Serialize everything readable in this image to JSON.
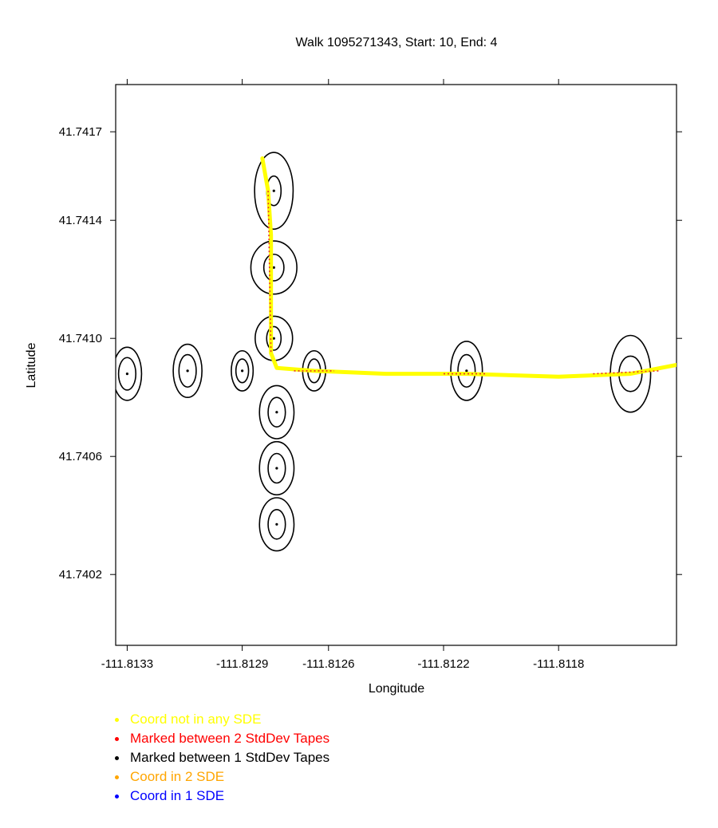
{
  "chart_data": {
    "type": "scatter",
    "title": "Walk 1095271343, Start: 10, End: 4",
    "xlabel": "Longitude",
    "ylabel": "Latitude",
    "xlim": [
      -111.81334,
      -111.81139
    ],
    "ylim": [
      41.73996,
      41.74186
    ],
    "xticks": [
      -111.8133,
      -111.8129,
      -111.8126,
      -111.8122,
      -111.8118
    ],
    "xtick_labels": [
      "-111.8133",
      "-111.8129",
      "-111.8126",
      "-111.8122",
      "-111.8118"
    ],
    "yticks": [
      41.7417,
      41.7414,
      41.741,
      41.7406,
      41.7402
    ],
    "ytick_labels": [
      "41.7417",
      "41.7414",
      "41.7410",
      "41.7406",
      "41.7402"
    ],
    "legend": [
      {
        "label": "Coord not in any SDE",
        "color": "#ffff00"
      },
      {
        "label": "Marked between 2 StdDev Tapes",
        "color": "#ff0000"
      },
      {
        "label": "Marked between 1 StdDev Tapes",
        "color": "#000000"
      },
      {
        "label": "Coord in 2 SDE",
        "color": "#ffa500"
      },
      {
        "label": "Coord in 1 SDE",
        "color": "#0000ff"
      }
    ],
    "ellipses": [
      {
        "x": -111.8133,
        "y": 41.74088,
        "rx1": 3e-05,
        "ry1": 5.5e-05,
        "rx2": 5e-05,
        "ry2": 9e-05
      },
      {
        "x": -111.81309,
        "y": 41.74089,
        "rx1": 3e-05,
        "ry1": 5.5e-05,
        "rx2": 5e-05,
        "ry2": 9e-05
      },
      {
        "x": -111.8129,
        "y": 41.74089,
        "rx1": 2.2e-05,
        "ry1": 4e-05,
        "rx2": 3.8e-05,
        "ry2": 6.8e-05
      },
      {
        "x": -111.81279,
        "y": 41.7415,
        "rx1": 2.5e-05,
        "ry1": 5e-05,
        "rx2": 6.7e-05,
        "ry2": 0.00013
      },
      {
        "x": -111.81279,
        "y": 41.74124,
        "rx1": 3.5e-05,
        "ry1": 4.5e-05,
        "rx2": 8e-05,
        "ry2": 9e-05
      },
      {
        "x": -111.81279,
        "y": 41.741,
        "rx1": 2.5e-05,
        "ry1": 4e-05,
        "rx2": 6.5e-05,
        "ry2": 7.5e-05
      },
      {
        "x": -111.81278,
        "y": 41.74075,
        "rx1": 3e-05,
        "ry1": 5e-05,
        "rx2": 6e-05,
        "ry2": 9e-05
      },
      {
        "x": -111.81278,
        "y": 41.74056,
        "rx1": 3e-05,
        "ry1": 5e-05,
        "rx2": 6e-05,
        "ry2": 9e-05
      },
      {
        "x": -111.81278,
        "y": 41.74037,
        "rx1": 3e-05,
        "ry1": 5e-05,
        "rx2": 6e-05,
        "ry2": 9e-05
      },
      {
        "x": -111.81265,
        "y": 41.74089,
        "rx1": 2.2e-05,
        "ry1": 4e-05,
        "rx2": 4e-05,
        "ry2": 6.8e-05
      },
      {
        "x": -111.81212,
        "y": 41.74089,
        "rx1": 3e-05,
        "ry1": 5.5e-05,
        "rx2": 5.5e-05,
        "ry2": 0.0001
      },
      {
        "x": -111.81155,
        "y": 41.74088,
        "rx1": 4e-05,
        "ry1": 6e-05,
        "rx2": 7e-05,
        "ry2": 0.00013
      }
    ],
    "walk_path": [
      [
        -111.81283,
        41.74161
      ],
      [
        -111.81281,
        41.7415
      ],
      [
        -111.8128,
        41.74135
      ],
      [
        -111.8128,
        41.7411
      ],
      [
        -111.8128,
        41.74095
      ],
      [
        -111.81278,
        41.7409
      ],
      [
        -111.81265,
        41.74089
      ],
      [
        -111.8124,
        41.74088
      ],
      [
        -111.81212,
        41.74088
      ],
      [
        -111.8118,
        41.74087
      ],
      [
        -111.81155,
        41.74088
      ],
      [
        -111.81139,
        41.74091
      ]
    ],
    "red_segments": [
      [
        [
          -111.81281,
          41.7415
        ],
        [
          -111.8128,
          41.74095
        ]
      ],
      [
        [
          -111.81272,
          41.74089
        ],
        [
          -111.81258,
          41.74089
        ]
      ],
      [
        [
          -111.8122,
          41.74088
        ],
        [
          -111.81205,
          41.74088
        ]
      ],
      [
        [
          -111.81168,
          41.74088
        ],
        [
          -111.81145,
          41.74089
        ]
      ]
    ]
  }
}
